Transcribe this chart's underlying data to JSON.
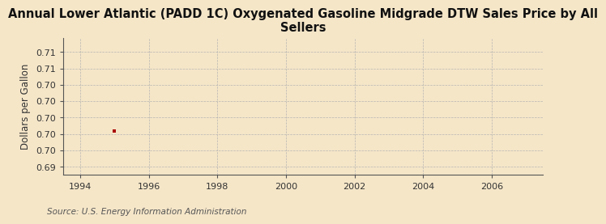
{
  "title": "Annual Lower Atlantic (PADD 1C) Oxygenated Gasoline Midgrade DTW Sales Price by All\nSellers",
  "ylabel": "Dollars per Gallon",
  "source_text": "Source: U.S. Energy Information Administration",
  "background_color": "#f5e6c8",
  "plot_bg_color": "#f5e6c8",
  "data_x": [
    1995
  ],
  "data_y": [
    0.6965
  ],
  "data_color": "#aa0000",
  "xlim": [
    1993.5,
    2007.5
  ],
  "ylim": [
    0.6885,
    0.7135
  ],
  "xticks": [
    1994,
    1996,
    1998,
    2000,
    2002,
    2004,
    2006
  ],
  "ytick_positions": [
    0.69,
    0.693,
    0.696,
    0.699,
    0.702,
    0.705,
    0.708,
    0.711
  ],
  "ytick_labels": [
    "0.69",
    "0.70",
    "0.70",
    "0.70",
    "0.70",
    "0.70",
    "0.71",
    "0.71"
  ],
  "title_fontsize": 10.5,
  "axis_fontsize": 8.5,
  "tick_fontsize": 8,
  "source_fontsize": 7.5
}
